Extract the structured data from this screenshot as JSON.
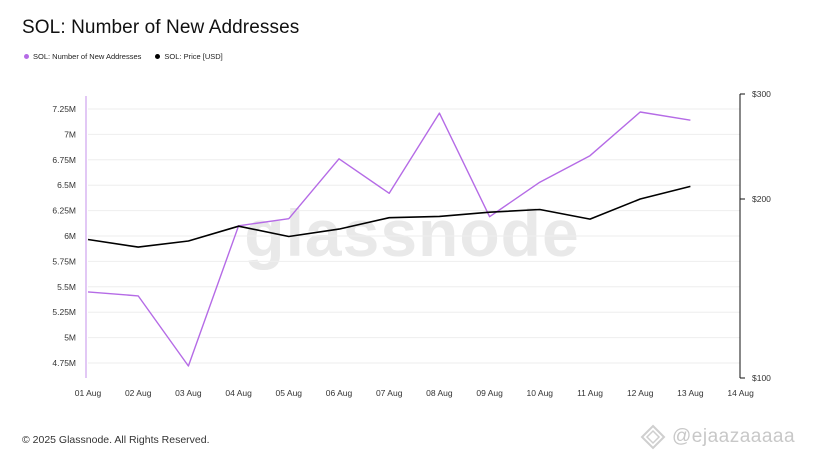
{
  "title": "SOL: Number of New Addresses",
  "legend": [
    {
      "label": "SOL: Number of New Addresses",
      "color": "#b56be6"
    },
    {
      "label": "SOL: Price [USD]",
      "color": "#000000"
    }
  ],
  "footer": "© 2025 Glassnode. All Rights Reserved.",
  "watermark_center": "glassnode",
  "watermark_corner": "@ejaazaaaaa",
  "chart_data": {
    "type": "line",
    "title": "SOL: Number of New Addresses",
    "categories": [
      "01 Aug",
      "02 Aug",
      "03 Aug",
      "04 Aug",
      "05 Aug",
      "06 Aug",
      "07 Aug",
      "08 Aug",
      "09 Aug",
      "10 Aug",
      "11 Aug",
      "12 Aug",
      "13 Aug",
      "14 Aug"
    ],
    "series": [
      {
        "name": "SOL: Number of New Addresses",
        "axis": "left",
        "color": "#b56be6",
        "values": [
          5.45,
          5.41,
          4.72,
          6.1,
          6.17,
          6.76,
          6.42,
          7.21,
          6.19,
          6.53,
          6.79,
          7.22,
          7.14,
          null
        ]
      },
      {
        "name": "SOL: Price [USD]",
        "axis": "right",
        "color": "#000000",
        "values": [
          171,
          166,
          170,
          180,
          173,
          178,
          186,
          187,
          190,
          192,
          185,
          200,
          210,
          null
        ]
      }
    ],
    "y_left": {
      "range": [
        4.65,
        7.4
      ],
      "ticks": [
        4.75,
        5,
        5.25,
        5.5,
        5.75,
        6,
        6.25,
        6.5,
        6.75,
        7,
        7.25
      ],
      "tick_labels": [
        "4.75M",
        "5M",
        "5.25M",
        "5.5M",
        "5.75M",
        "6M",
        "6.25M",
        "6.5M",
        "6.75M",
        "7M",
        "7.25M"
      ]
    },
    "y_right": {
      "scale": "log",
      "range": [
        100,
        300
      ],
      "ticks": [
        100,
        200,
        300
      ],
      "tick_labels": [
        "$100",
        "$200",
        "$300"
      ]
    },
    "grid": true,
    "legend_position": "top-left"
  }
}
